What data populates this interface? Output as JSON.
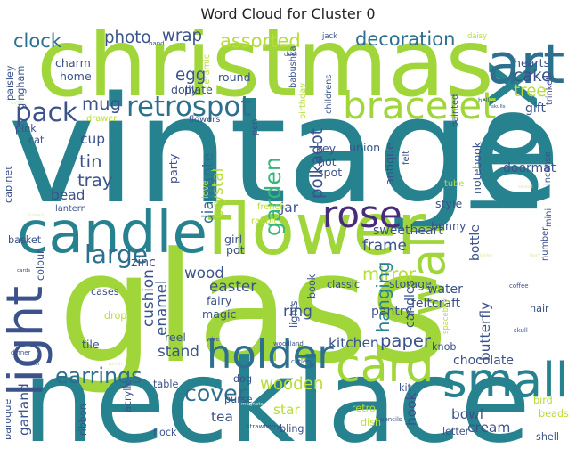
{
  "title": "Word Cloud for Cluster 0",
  "chart_data": {
    "type": "wordcloud",
    "title": "Word Cloud for Cluster 0",
    "palette": [
      "#b7dd37",
      "#a0d63a",
      "#7ac943",
      "#35b779",
      "#1f9e89",
      "#26828e",
      "#2c6f8e",
      "#3b528b",
      "#472c7a",
      "#dcecb5",
      "#cde5c4"
    ],
    "words": [
      {
        "text": "vintage",
        "weight": 100,
        "color": "#26828e"
      },
      {
        "text": "glass",
        "weight": 92,
        "color": "#a0d63a"
      },
      {
        "text": "necklace",
        "weight": 86,
        "color": "#26828e"
      },
      {
        "text": "christmas",
        "weight": 80,
        "color": "#a0d63a"
      },
      {
        "text": "box",
        "weight": 68,
        "color": "#26828e",
        "rotate": true
      },
      {
        "text": "flower",
        "weight": 56,
        "color": "#a0d63a"
      },
      {
        "text": "candle",
        "weight": 48,
        "color": "#26828e"
      },
      {
        "text": "light",
        "weight": 44,
        "color": "#3b528b",
        "rotate": true
      },
      {
        "text": "art",
        "weight": 44,
        "color": "#2c6f8e"
      },
      {
        "text": "wall",
        "weight": 42,
        "color": "#a0d63a",
        "rotate": true
      },
      {
        "text": "small",
        "weight": 40,
        "color": "#26828e"
      },
      {
        "text": "card",
        "weight": 38,
        "color": "#a0d63a"
      },
      {
        "text": "holder",
        "weight": 34,
        "color": "#2c6f8e"
      },
      {
        "text": "bracelet",
        "weight": 34,
        "color": "#a0d63a"
      },
      {
        "text": "rose",
        "weight": 32,
        "color": "#472c7a"
      },
      {
        "text": "retrospot",
        "weight": 26,
        "color": "#2c6f8e"
      },
      {
        "text": "pack",
        "weight": 24,
        "color": "#3b528b"
      },
      {
        "text": "large",
        "weight": 22,
        "color": "#2c6f8e"
      },
      {
        "text": "garden",
        "weight": 20,
        "color": "#35b779",
        "rotate": true
      },
      {
        "text": "cover",
        "weight": 20,
        "color": "#2c6f8e"
      },
      {
        "text": "earrings",
        "weight": 18,
        "color": "#2c6f8e"
      },
      {
        "text": "assorted",
        "weight": 17,
        "color": "#b7dd37"
      },
      {
        "text": "decoration",
        "weight": 16,
        "color": "#2c6f8e"
      },
      {
        "text": "clock",
        "weight": 15,
        "color": "#2c6f8e"
      },
      {
        "text": "mug",
        "weight": 14,
        "color": "#3b528b"
      },
      {
        "text": "tin",
        "weight": 14,
        "color": "#3b528b"
      },
      {
        "text": "tray",
        "weight": 14,
        "color": "#3b528b"
      },
      {
        "text": "cake",
        "weight": 14,
        "color": "#3b528b"
      },
      {
        "text": "tree",
        "weight": 14,
        "color": "#b7dd37"
      },
      {
        "text": "mirror",
        "weight": 14,
        "color": "#b7dd37"
      },
      {
        "text": "hanging",
        "weight": 14,
        "color": "#26828e",
        "rotate": true
      },
      {
        "text": "paper",
        "weight": 14,
        "color": "#3b528b"
      },
      {
        "text": "wooden",
        "weight": 13,
        "color": "#b7dd37"
      },
      {
        "text": "photo",
        "weight": 13,
        "color": "#3b528b"
      },
      {
        "text": "wrap",
        "weight": 13,
        "color": "#3b528b"
      },
      {
        "text": "egg",
        "weight": 13,
        "color": "#3b528b"
      },
      {
        "text": "polkadot",
        "weight": 13,
        "color": "#3b528b",
        "rotate": true
      },
      {
        "text": "crystal",
        "weight": 12,
        "color": "#b7dd37",
        "rotate": true
      },
      {
        "text": "diamante",
        "weight": 12,
        "color": "#2c6f8e",
        "rotate": true
      },
      {
        "text": "cushion",
        "weight": 12,
        "color": "#3b528b",
        "rotate": true
      },
      {
        "text": "enamel",
        "weight": 12,
        "color": "#3b528b",
        "rotate": true
      },
      {
        "text": "frame",
        "weight": 12,
        "color": "#3b528b"
      },
      {
        "text": "stand",
        "weight": 12,
        "color": "#3b528b"
      },
      {
        "text": "ring",
        "weight": 12,
        "color": "#3b528b"
      },
      {
        "text": "wood",
        "weight": 12,
        "color": "#3b528b"
      },
      {
        "text": "easter",
        "weight": 12,
        "color": "#3b528b"
      },
      {
        "text": "kitchen",
        "weight": 11,
        "color": "#3b528b"
      },
      {
        "text": "bowl",
        "weight": 11,
        "color": "#3b528b"
      },
      {
        "text": "cream",
        "weight": 11,
        "color": "#3b528b"
      },
      {
        "text": "star",
        "weight": 11,
        "color": "#b7dd37"
      },
      {
        "text": "tea",
        "weight": 11,
        "color": "#3b528b"
      },
      {
        "text": "garland",
        "weight": 11,
        "color": "#3b528b",
        "rotate": true
      },
      {
        "text": "hook",
        "weight": 11,
        "color": "#3b528b",
        "rotate": true
      },
      {
        "text": "cup",
        "weight": 11,
        "color": "#3b528b"
      },
      {
        "text": "bead",
        "weight": 11,
        "color": "#3b528b"
      },
      {
        "text": "jar",
        "weight": 11,
        "color": "#3b528b"
      },
      {
        "text": "butterfly",
        "weight": 11,
        "color": "#3b528b",
        "rotate": true
      },
      {
        "text": "sweetheart",
        "weight": 10,
        "color": "#3b528b"
      },
      {
        "text": "bottle",
        "weight": 10,
        "color": "#3b528b",
        "rotate": true
      },
      {
        "text": "candles",
        "weight": 10,
        "color": "#3b528b",
        "rotate": true
      },
      {
        "text": "pantry",
        "weight": 10,
        "color": "#3b528b"
      },
      {
        "text": "water",
        "weight": 10,
        "color": "#3b528b"
      },
      {
        "text": "feltcraft",
        "weight": 10,
        "color": "#3b528b"
      },
      {
        "text": "doormat",
        "weight": 10,
        "color": "#3b528b"
      },
      {
        "text": "chocolate",
        "weight": 10,
        "color": "#3b528b"
      },
      {
        "text": "gift",
        "weight": 10,
        "color": "#3b528b"
      },
      {
        "text": "zinc",
        "weight": 10,
        "color": "#3b528b"
      },
      {
        "text": "party",
        "weight": 9,
        "color": "#3b528b",
        "rotate": true
      },
      {
        "text": "fairy",
        "weight": 9,
        "color": "#3b528b"
      },
      {
        "text": "magic",
        "weight": 9,
        "color": "#3b528b"
      },
      {
        "text": "girl",
        "weight": 9,
        "color": "#3b528b"
      },
      {
        "text": "pot",
        "weight": 9,
        "color": "#3b528b"
      },
      {
        "text": "hearts",
        "weight": 9,
        "color": "#3b528b"
      },
      {
        "text": "key",
        "weight": 9,
        "color": "#3b528b"
      },
      {
        "text": "hot",
        "weight": 9,
        "color": "#3b528b"
      },
      {
        "text": "spot",
        "weight": 9,
        "color": "#3b528b"
      },
      {
        "text": "dolly",
        "weight": 9,
        "color": "#3b528b"
      },
      {
        "text": "plate",
        "weight": 9,
        "color": "#3b528b"
      },
      {
        "text": "round",
        "weight": 9,
        "color": "#3b528b"
      },
      {
        "text": "home",
        "weight": 9,
        "color": "#3b528b"
      },
      {
        "text": "charm",
        "weight": 9,
        "color": "#3b528b"
      },
      {
        "text": "union",
        "weight": 9,
        "color": "#3b528b"
      },
      {
        "text": "notebook",
        "weight": 9,
        "color": "#3b528b",
        "rotate": true
      },
      {
        "text": "antique",
        "weight": 9,
        "color": "#3b528b",
        "rotate": true
      },
      {
        "text": "style",
        "weight": 9,
        "color": "#3b528b"
      },
      {
        "text": "bunny",
        "weight": 9,
        "color": "#3b528b"
      },
      {
        "text": "storage",
        "weight": 9,
        "color": "#3b528b"
      },
      {
        "text": "tile",
        "weight": 9,
        "color": "#3b528b"
      },
      {
        "text": "reel",
        "weight": 9,
        "color": "#3b528b"
      },
      {
        "text": "table",
        "weight": 8,
        "color": "#3b528b"
      },
      {
        "text": "purse",
        "weight": 8,
        "color": "#3b528b"
      },
      {
        "text": "bling",
        "weight": 8,
        "color": "#3b528b"
      },
      {
        "text": "flock",
        "weight": 8,
        "color": "#3b528b"
      },
      {
        "text": "letter",
        "weight": 8,
        "color": "#3b528b"
      },
      {
        "text": "shell",
        "weight": 8,
        "color": "#3b528b"
      },
      {
        "text": "dish",
        "weight": 8,
        "color": "#b7dd37"
      },
      {
        "text": "retro",
        "weight": 8,
        "color": "#b7dd37"
      },
      {
        "text": "kit",
        "weight": 8,
        "color": "#3b528b"
      },
      {
        "text": "bird",
        "weight": 8,
        "color": "#b7dd37"
      },
      {
        "text": "beads",
        "weight": 8,
        "color": "#b7dd37"
      },
      {
        "text": "hair",
        "weight": 8,
        "color": "#3b528b"
      },
      {
        "text": "knob",
        "weight": 8,
        "color": "#3b528b"
      },
      {
        "text": "classic",
        "weight": 8,
        "color": "#3b528b"
      },
      {
        "text": "lights",
        "weight": 8,
        "color": "#3b528b",
        "rotate": true
      },
      {
        "text": "book",
        "weight": 8,
        "color": "#3b528b",
        "rotate": true
      },
      {
        "text": "dog",
        "weight": 8,
        "color": "#3b528b"
      },
      {
        "text": "acrylic",
        "weight": 8,
        "color": "#3b528b",
        "rotate": true
      },
      {
        "text": "ribbon",
        "weight": 8,
        "color": "#3b528b",
        "rotate": true
      },
      {
        "text": "baroque",
        "weight": 8,
        "color": "#3b528b",
        "rotate": true
      },
      {
        "text": "basket",
        "weight": 8,
        "color": "#3b528b"
      },
      {
        "text": "cases",
        "weight": 8,
        "color": "#3b528b"
      },
      {
        "text": "colour",
        "weight": 8,
        "color": "#3b528b",
        "rotate": true
      },
      {
        "text": "drop",
        "weight": 8,
        "color": "#b7dd37"
      },
      {
        "text": "cabinet",
        "weight": 8,
        "color": "#3b528b",
        "rotate": true
      },
      {
        "text": "pink",
        "weight": 8,
        "color": "#3b528b"
      },
      {
        "text": "cat",
        "weight": 8,
        "color": "#3b528b"
      },
      {
        "text": "paisley",
        "weight": 8,
        "color": "#3b528b",
        "rotate": true
      },
      {
        "text": "gingham",
        "weight": 8,
        "color": "#3b528b",
        "rotate": true
      },
      {
        "text": "drawer",
        "weight": 7,
        "color": "#b7dd37"
      },
      {
        "text": "ceramic",
        "weight": 7,
        "color": "#b7dd37",
        "rotate": true
      },
      {
        "text": "birthday",
        "weight": 7,
        "color": "#b7dd37",
        "rotate": true
      },
      {
        "text": "babushka",
        "weight": 7,
        "color": "#3b528b",
        "rotate": true
      },
      {
        "text": "childrens",
        "weight": 7,
        "color": "#3b528b",
        "rotate": true
      },
      {
        "text": "painted",
        "weight": 7,
        "color": "#3b528b",
        "rotate": true
      },
      {
        "text": "trinket",
        "weight": 7,
        "color": "#3b528b",
        "rotate": true
      },
      {
        "text": "incense",
        "weight": 7,
        "color": "#3b528b",
        "rotate": true
      },
      {
        "text": "felt",
        "weight": 7,
        "color": "#3b528b",
        "rotate": true
      },
      {
        "text": "flowers",
        "weight": 7,
        "color": "#3b528b"
      },
      {
        "text": "pen",
        "weight": 7,
        "color": "#3b528b",
        "rotate": true
      },
      {
        "text": "love",
        "weight": 7,
        "color": "#b7dd37",
        "rotate": true
      },
      {
        "text": "french",
        "weight": 7,
        "color": "#b7dd37"
      },
      {
        "text": "rabbit",
        "weight": 7,
        "color": "#b7dd37"
      },
      {
        "text": "tube",
        "weight": 7,
        "color": "#b7dd37"
      },
      {
        "text": "number",
        "weight": 7,
        "color": "#3b528b",
        "rotate": true
      },
      {
        "text": "mini",
        "weight": 7,
        "color": "#3b528b",
        "rotate": true
      },
      {
        "text": "lantern",
        "weight": 7,
        "color": "#3b528b"
      },
      {
        "text": "spaceboy",
        "weight": 6,
        "color": "#b7dd37",
        "rotate": true
      },
      {
        "text": "jack",
        "weight": 6,
        "color": "#3b528b"
      },
      {
        "text": "daisy",
        "weight": 6,
        "color": "#b7dd37"
      },
      {
        "text": "hand",
        "weight": 5,
        "color": "#3b528b"
      },
      {
        "text": "door",
        "weight": 5,
        "color": "#3b528b"
      },
      {
        "text": "bell",
        "weight": 5,
        "color": "#3b528b"
      },
      {
        "text": "skull",
        "weight": 5,
        "color": "#3b528b"
      },
      {
        "text": "wire",
        "weight": 5,
        "color": "#3b528b"
      },
      {
        "text": "woodland",
        "weight": 5,
        "color": "#3b528b"
      },
      {
        "text": "cutlery",
        "weight": 5,
        "color": "#3b528b"
      },
      {
        "text": "dinner",
        "weight": 5,
        "color": "#3b528b"
      },
      {
        "text": "pencils",
        "weight": 5,
        "color": "#3b528b"
      },
      {
        "text": "strawberry",
        "weight": 5,
        "color": "#3b528b"
      },
      {
        "text": "magnets",
        "weight": 4,
        "color": "#dcecb5"
      },
      {
        "text": "coffee",
        "weight": 5,
        "color": "#3b528b"
      },
      {
        "text": "leaf",
        "weight": 4,
        "color": "#dcecb5"
      },
      {
        "text": "sweet",
        "weight": 4,
        "color": "#dcecb5"
      },
      {
        "text": "cards",
        "weight": 4,
        "color": "#3b528b"
      },
      {
        "text": "london",
        "weight": 4,
        "color": "#dcecb5"
      },
      {
        "text": "doiley",
        "weight": 4,
        "color": "#dcecb5"
      },
      {
        "text": "wicker",
        "weight": 4,
        "color": "#3b528b"
      },
      {
        "text": "lunch",
        "weight": 4,
        "color": "#dcecb5"
      },
      {
        "text": "skulls",
        "weight": 4,
        "color": "#3b528b"
      },
      {
        "text": "boxed",
        "weight": 4,
        "color": "#dcecb5"
      }
    ]
  }
}
